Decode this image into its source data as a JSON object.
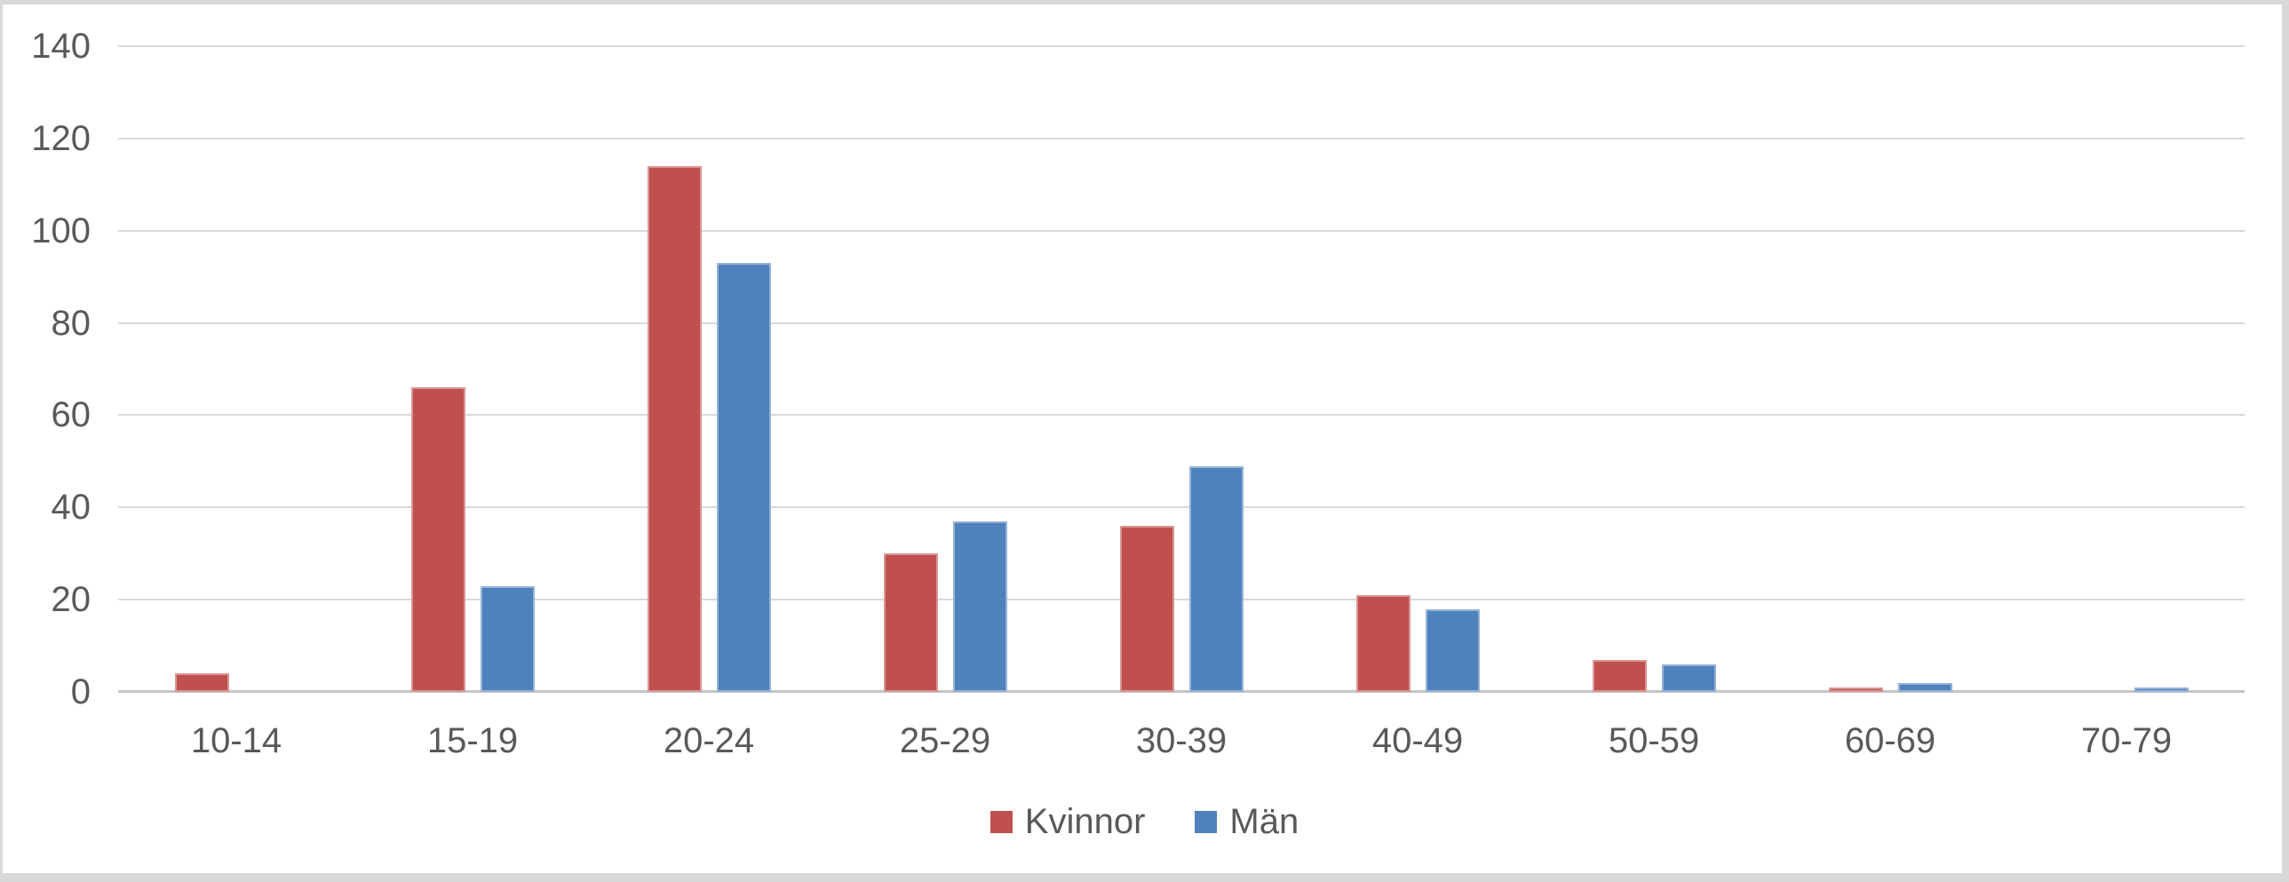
{
  "chart_data": {
    "type": "bar",
    "title": "",
    "xlabel": "",
    "ylabel": "",
    "categories": [
      "10-14",
      "15-19",
      "20-24",
      "25-29",
      "30-39",
      "40-49",
      "50-59",
      "60-69",
      "70-79"
    ],
    "series": [
      {
        "name": "Kvinnor",
        "color": "#C0504D",
        "values": [
          4,
          66,
          114,
          30,
          36,
          21,
          7,
          1,
          0
        ]
      },
      {
        "name": "Män",
        "color": "#4F81BD",
        "values": [
          0,
          23,
          93,
          37,
          49,
          18,
          6,
          2,
          1
        ]
      }
    ],
    "ylim": [
      0,
      140
    ],
    "ytick_step": 20,
    "ytick_labels": [
      "0",
      "20",
      "40",
      "60",
      "80",
      "100",
      "120",
      "140"
    ],
    "grid": true,
    "legend_position": "bottom"
  },
  "colors": {
    "gridline": "#D9D9D9",
    "axis_line": "#C6C6C6",
    "tick_text": "#595959",
    "frame_border": "#D8D8D8",
    "background": "#FFFFFF"
  }
}
